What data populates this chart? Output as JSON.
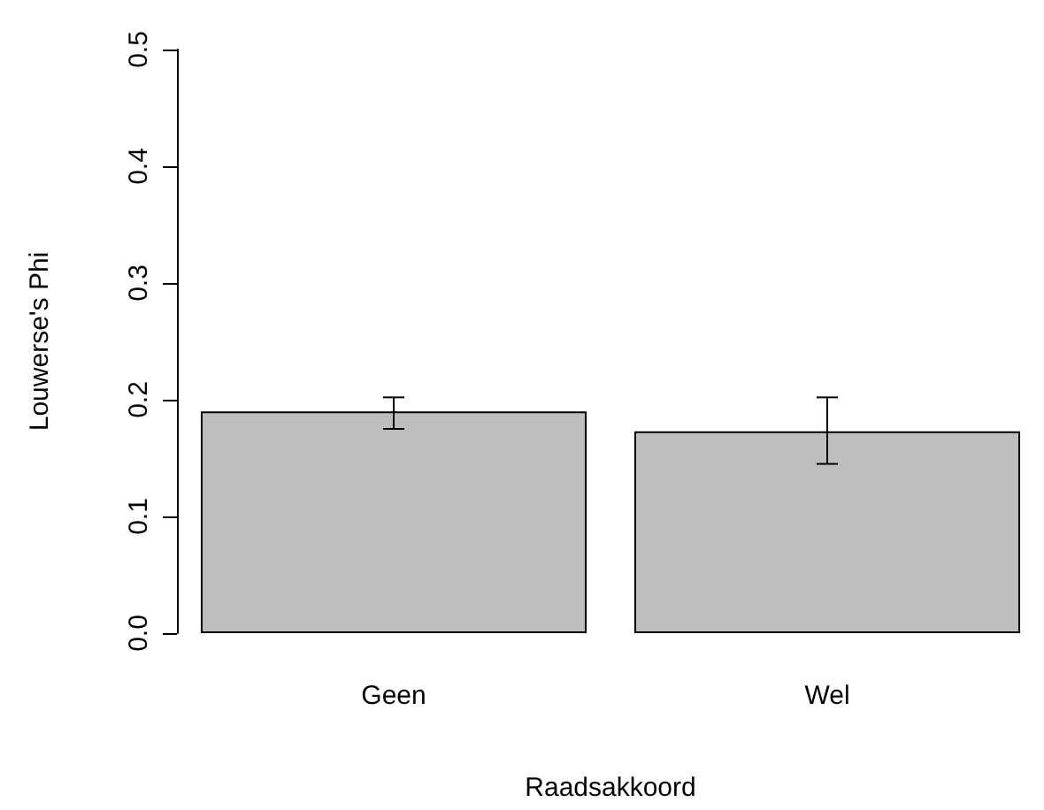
{
  "chart_data": {
    "type": "bar",
    "xlabel": "Raadsakkoord",
    "ylabel": "Louwerse's Phi",
    "categories": [
      "Geen",
      "Wel"
    ],
    "values": [
      0.19,
      0.173
    ],
    "errors": [
      [
        0.175,
        0.202
      ],
      [
        0.145,
        0.202
      ]
    ],
    "color": "#bebebe",
    "ylim": [
      0,
      0.5
    ],
    "yticks": [
      {
        "value": 0,
        "label": "0.0"
      },
      {
        "value": 0.1,
        "label": "0.1"
      },
      {
        "value": 0.2,
        "label": "0.2"
      },
      {
        "value": 0.3,
        "label": "0.3"
      },
      {
        "value": 0.4,
        "label": "0.4"
      },
      {
        "value": 0.5,
        "label": "0.5"
      }
    ],
    "grid": false
  }
}
